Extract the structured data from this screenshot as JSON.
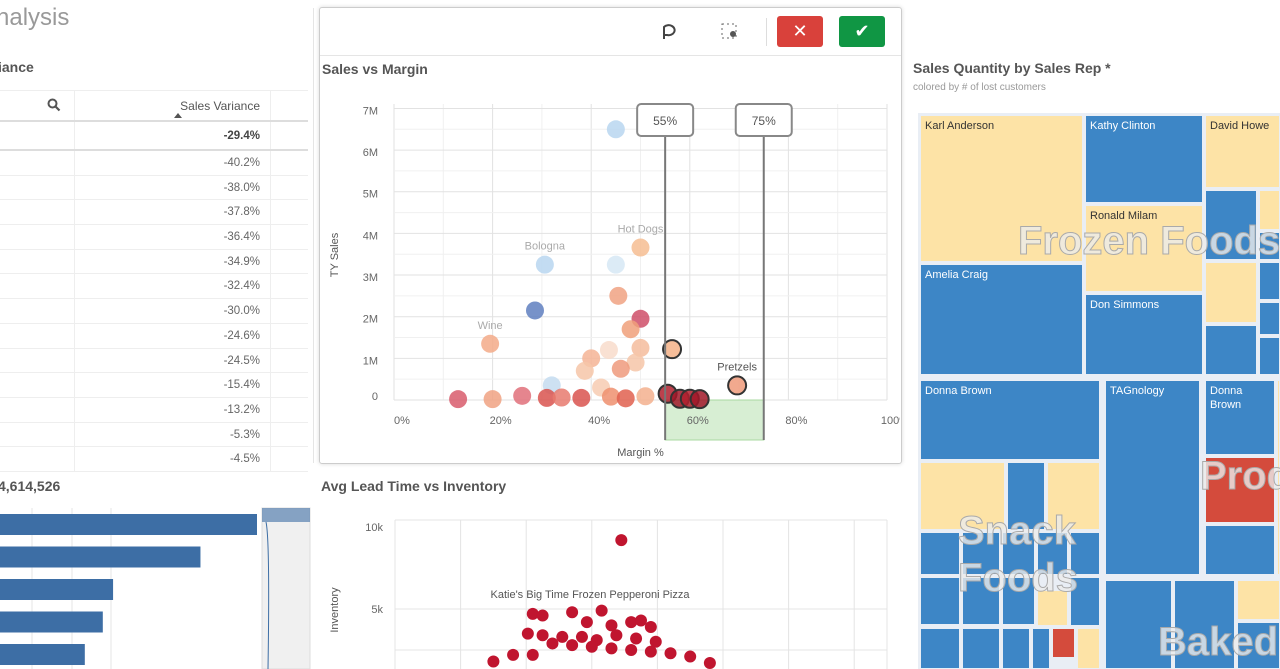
{
  "sheet": {
    "title": "nalysis"
  },
  "variance_table": {
    "title": "iance",
    "column_header": "Sales Variance",
    "sort": "ascending",
    "total": "-29.4%",
    "rows": [
      "-40.2%",
      "-38.0%",
      "-37.8%",
      "-36.4%",
      "-34.9%",
      "-32.4%",
      "-30.0%",
      "-24.6%",
      "-24.5%",
      "-15.4%",
      "-13.2%",
      "-5.3%",
      "-4.5%"
    ]
  },
  "selection_toolbar": {
    "lasso_icon": "lasso-icon",
    "select_icon": "rect-select-icon",
    "cancel_icon": "close-icon",
    "confirm_icon": "check-icon",
    "cancel_color": "#d9413b",
    "confirm_color": "#109644"
  },
  "sales_margin": {
    "title": "Sales vs Margin",
    "chart_data": {
      "type": "scatter",
      "xlabel": "Margin %",
      "ylabel": "TY Sales",
      "xlim": [
        0,
        100
      ],
      "ylim": [
        0,
        7000000
      ],
      "x_ticks": [
        "0%",
        "20%",
        "40%",
        "60%",
        "80%",
        "100%"
      ],
      "y_ticks": [
        "0",
        "1M",
        "2M",
        "3M",
        "4M",
        "5M",
        "6M",
        "7M"
      ],
      "grid": true,
      "range_selection": {
        "min_label": "55%",
        "max_label": "75%",
        "min": 55,
        "max": 75
      },
      "points": [
        {
          "x": 45,
          "y": 6500000,
          "c": "#b9d6f0"
        },
        {
          "x": 30.6,
          "y": 3250000,
          "c": "#b9d6f0",
          "label": "Bologna"
        },
        {
          "x": 45,
          "y": 3250000,
          "c": "#d6e7f5"
        },
        {
          "x": 50,
          "y": 3660000,
          "c": "#f6bd92",
          "label": "Hot Dogs"
        },
        {
          "x": 45.5,
          "y": 2500000,
          "c": "#f0a283"
        },
        {
          "x": 28.6,
          "y": 2150000,
          "c": "#5f7fbf"
        },
        {
          "x": 50,
          "y": 1950000,
          "c": "#cf4f68"
        },
        {
          "x": 48,
          "y": 1700000,
          "c": "#f0a07a"
        },
        {
          "x": 19.5,
          "y": 1350000,
          "c": "#f3aa88",
          "label": "Wine"
        },
        {
          "x": 56.4,
          "y": 1220000,
          "c": "#f5b287",
          "selected": true
        },
        {
          "x": 69.6,
          "y": 350000,
          "c": "#ee9a7a",
          "selected": true,
          "label": "Pretzels"
        },
        {
          "x": 43.6,
          "y": 1200000,
          "c": "#f8dccb"
        },
        {
          "x": 50,
          "y": 1250000,
          "c": "#f4bc9c"
        },
        {
          "x": 40,
          "y": 1000000,
          "c": "#f4b495"
        },
        {
          "x": 49,
          "y": 900000,
          "c": "#f6c5a8"
        },
        {
          "x": 46,
          "y": 750000,
          "c": "#ef9a7c"
        },
        {
          "x": 38.7,
          "y": 700000,
          "c": "#f6c5a8"
        },
        {
          "x": 32,
          "y": 350000,
          "c": "#c4dcf0"
        },
        {
          "x": 42,
          "y": 300000,
          "c": "#f7cbb2"
        },
        {
          "x": 13,
          "y": 20000,
          "c": "#d85c6c"
        },
        {
          "x": 20,
          "y": 20000,
          "c": "#f0a283"
        },
        {
          "x": 26,
          "y": 100000,
          "c": "#e0707a"
        },
        {
          "x": 31,
          "y": 50000,
          "c": "#d9534f"
        },
        {
          "x": 34,
          "y": 60000,
          "c": "#e77a6e"
        },
        {
          "x": 38,
          "y": 50000,
          "c": "#d9534f"
        },
        {
          "x": 44,
          "y": 80000,
          "c": "#ee8f6e"
        },
        {
          "x": 47,
          "y": 40000,
          "c": "#e0604f"
        },
        {
          "x": 51,
          "y": 90000,
          "c": "#f3b08e"
        },
        {
          "x": 55.5,
          "y": 150000,
          "c": "#b0202e",
          "selected": true
        },
        {
          "x": 58,
          "y": 30000,
          "c": "#a01828",
          "selected": true
        },
        {
          "x": 60,
          "y": 30000,
          "c": "#b0202e",
          "selected": true
        },
        {
          "x": 62,
          "y": 20000,
          "c": "#a01828",
          "selected": true
        }
      ]
    }
  },
  "bar_panel": {
    "title": "4,614,526",
    "chart_data": {
      "type": "bar",
      "orientation": "horizontal",
      "values_relative": [
        1.0,
        0.78,
        0.44,
        0.4,
        0.33
      ]
    }
  },
  "lead_time": {
    "title": "Avg Lead Time vs Inventory",
    "chart_data": {
      "type": "scatter",
      "ylabel": "Inventory",
      "y_ticks": [
        "5k",
        "10k"
      ],
      "ylim": [
        0,
        11000
      ],
      "grid": true,
      "annotation": "Katie's Big Time Frozen Pepperoni Pizza",
      "points": [
        [
          46,
          9200
        ],
        [
          28,
          4700
        ],
        [
          30,
          4600
        ],
        [
          36,
          4800
        ],
        [
          42,
          4900
        ],
        [
          39,
          4200
        ],
        [
          44,
          4000
        ],
        [
          48,
          4200
        ],
        [
          50,
          4300
        ],
        [
          52,
          3900
        ],
        [
          27,
          3500
        ],
        [
          30,
          3400
        ],
        [
          34,
          3300
        ],
        [
          38,
          3300
        ],
        [
          41,
          3100
        ],
        [
          45,
          3400
        ],
        [
          49,
          3200
        ],
        [
          53,
          3000
        ],
        [
          32,
          2900
        ],
        [
          36,
          2800
        ],
        [
          40,
          2700
        ],
        [
          44,
          2600
        ],
        [
          48,
          2500
        ],
        [
          52,
          2400
        ],
        [
          56,
          2300
        ],
        [
          24,
          2200
        ],
        [
          28,
          2200
        ],
        [
          60,
          2100
        ],
        [
          20,
          1800
        ],
        [
          64,
          1700
        ]
      ]
    }
  },
  "treemap": {
    "title": "Sales Quantity by Sales Rep *",
    "subtitle": "colored by # of lost customers",
    "colors": {
      "low": "#3d86c6",
      "mid": "#fde3a6",
      "high": "#d44b3c"
    },
    "groups": [
      "Frozen Foods",
      "Snack Foods",
      "Produce",
      "Baked Goods"
    ],
    "reps": [
      "Karl Anderson",
      "Kathy Clinton",
      "David Howe",
      "Ronald Milam",
      "Amelia Craig",
      "Don Simmons",
      "Donna Brown",
      "TAGnology",
      "Donna Brown"
    ]
  }
}
